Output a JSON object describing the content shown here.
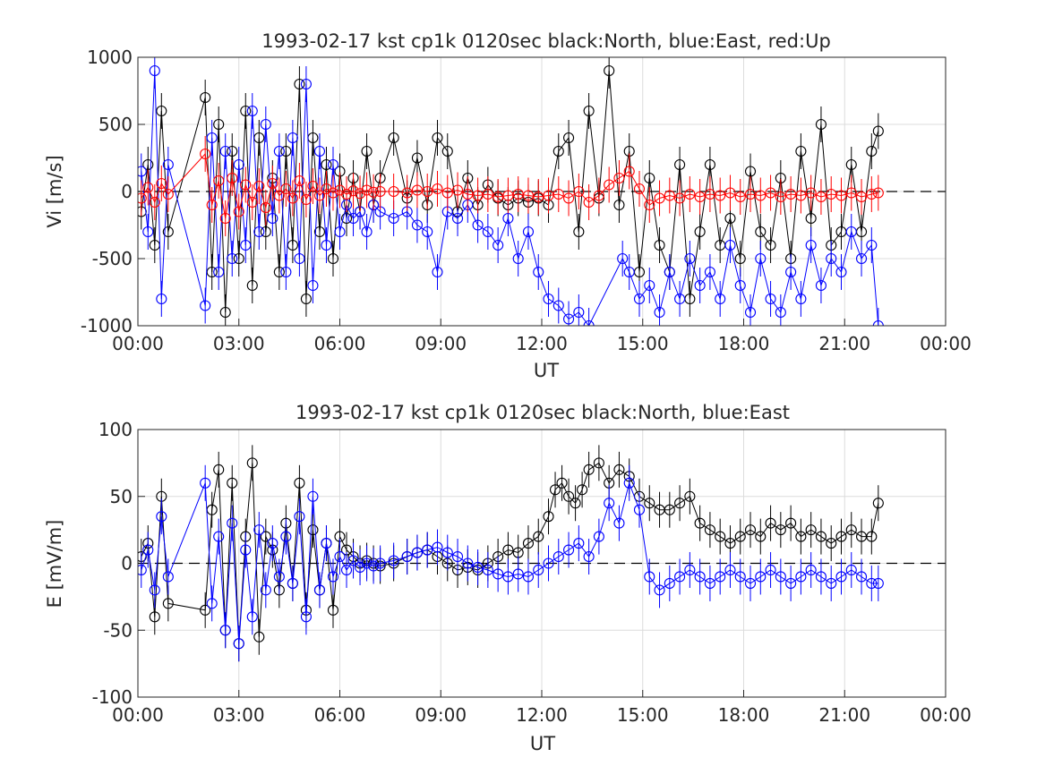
{
  "chart_data": [
    {
      "type": "scatter",
      "title": "1993-02-17 kst cp1k 0120sec black:North, blue:East, red:Up",
      "xlabel": "UT",
      "ylabel": "Vi [m/s]",
      "xlim": [
        0,
        24
      ],
      "ylim": [
        -1000,
        1000
      ],
      "xticks": [
        "00:00",
        "03:00",
        "06:00",
        "09:00",
        "12:00",
        "15:00",
        "18:00",
        "21:00",
        "00:00"
      ],
      "yticks": [
        "1000",
        "500",
        "0",
        "-500",
        "-1000"
      ],
      "grid": true,
      "zero_line": true,
      "x_units": "hours UT",
      "series": [
        {
          "color": "#000000",
          "x": [
            0.1,
            0.3,
            0.5,
            0.7,
            0.9,
            2.0,
            2.2,
            2.4,
            2.6,
            2.8,
            3.0,
            3.2,
            3.4,
            3.6,
            3.8,
            4.0,
            4.2,
            4.4,
            4.6,
            4.8,
            5.0,
            5.2,
            5.4,
            5.6,
            5.8,
            6.0,
            6.2,
            6.4,
            6.6,
            6.8,
            7.0,
            7.2,
            7.6,
            8.0,
            8.3,
            8.6,
            8.9,
            9.2,
            9.5,
            9.8,
            10.1,
            10.4,
            10.7,
            11.0,
            11.3,
            11.6,
            11.9,
            12.2,
            12.5,
            12.8,
            13.1,
            13.4,
            13.7,
            14.0,
            14.3,
            14.6,
            14.9,
            15.2,
            15.5,
            15.8,
            16.1,
            16.4,
            16.7,
            17.0,
            17.3,
            17.6,
            17.9,
            18.2,
            18.5,
            18.8,
            19.1,
            19.4,
            19.7,
            20.0,
            20.3,
            20.6,
            20.9,
            21.2,
            21.5,
            21.8,
            22.0
          ],
          "values": [
            -150,
            200,
            -400,
            600,
            -300,
            700,
            -600,
            500,
            -900,
            300,
            -500,
            600,
            -700,
            400,
            -300,
            100,
            -600,
            300,
            -400,
            800,
            -800,
            400,
            -300,
            200,
            -500,
            150,
            -200,
            100,
            -150,
            300,
            -100,
            100,
            400,
            -50,
            250,
            -100,
            400,
            300,
            -150,
            100,
            -100,
            50,
            -50,
            -100,
            -50,
            -80,
            -50,
            -100,
            300,
            400,
            -300,
            600,
            -50,
            900,
            -100,
            300,
            -600,
            100,
            -400,
            -600,
            200,
            -800,
            -300,
            200,
            -400,
            -200,
            -500,
            150,
            -300,
            -400,
            100,
            -500,
            300,
            -200,
            500,
            -400,
            -300,
            200,
            -300,
            300,
            450
          ]
        },
        {
          "color": "#0000ff",
          "x": [
            0.1,
            0.3,
            0.5,
            0.7,
            0.9,
            2.0,
            2.2,
            2.4,
            2.6,
            2.8,
            3.0,
            3.2,
            3.4,
            3.6,
            3.8,
            4.0,
            4.2,
            4.4,
            4.6,
            4.8,
            5.0,
            5.2,
            5.4,
            5.6,
            5.8,
            6.0,
            6.2,
            6.4,
            6.6,
            6.8,
            7.0,
            7.2,
            7.6,
            8.0,
            8.3,
            8.6,
            8.9,
            9.2,
            9.5,
            9.8,
            10.1,
            10.4,
            10.7,
            11.0,
            11.3,
            11.6,
            11.9,
            12.2,
            12.5,
            12.8,
            13.1,
            13.4,
            14.4,
            14.6,
            14.9,
            15.2,
            15.5,
            15.8,
            16.1,
            16.4,
            16.7,
            17.0,
            17.3,
            17.6,
            17.9,
            18.2,
            18.5,
            18.8,
            19.1,
            19.4,
            19.7,
            20.0,
            20.3,
            20.6,
            20.9,
            21.2,
            21.5,
            21.8,
            22.0
          ],
          "values": [
            150,
            -300,
            900,
            -800,
            200,
            -850,
            400,
            -600,
            300,
            -500,
            200,
            -400,
            600,
            -300,
            500,
            -200,
            300,
            -600,
            400,
            -500,
            800,
            -700,
            300,
            -400,
            200,
            -300,
            -100,
            -200,
            -150,
            -300,
            -100,
            -150,
            -200,
            -150,
            -250,
            -300,
            -600,
            -150,
            -200,
            -100,
            -250,
            -300,
            -400,
            -200,
            -500,
            -300,
            -600,
            -800,
            -850,
            -950,
            -900,
            -1000,
            -500,
            -600,
            -800,
            -700,
            -900,
            -600,
            -800,
            -500,
            -700,
            -600,
            -800,
            -400,
            -700,
            -900,
            -500,
            -800,
            -900,
            -600,
            -800,
            -400,
            -700,
            -500,
            -600,
            -300,
            -500,
            -400,
            -1000
          ]
        },
        {
          "color": "#ff0000",
          "x": [
            0.1,
            0.3,
            0.5,
            0.7,
            0.9,
            2.0,
            2.2,
            2.4,
            2.6,
            2.8,
            3.0,
            3.2,
            3.4,
            3.6,
            3.8,
            4.0,
            4.2,
            4.4,
            4.6,
            4.8,
            5.0,
            5.2,
            5.4,
            5.6,
            5.8,
            6.0,
            6.2,
            6.4,
            6.6,
            6.8,
            7.0,
            7.2,
            7.6,
            8.0,
            8.3,
            8.6,
            8.9,
            9.2,
            9.5,
            9.8,
            10.1,
            10.4,
            10.7,
            11.0,
            11.3,
            11.6,
            11.9,
            12.2,
            12.5,
            12.8,
            13.1,
            13.4,
            13.7,
            14.0,
            14.3,
            14.6,
            14.9,
            15.2,
            15.5,
            15.8,
            16.1,
            16.4,
            16.7,
            17.0,
            17.3,
            17.6,
            17.9,
            18.2,
            18.5,
            18.8,
            19.1,
            19.4,
            19.7,
            20.0,
            20.3,
            20.6,
            20.9,
            21.2,
            21.5,
            21.8,
            22.0
          ],
          "values": [
            -50,
            30,
            -80,
            60,
            -20,
            280,
            -100,
            80,
            -200,
            100,
            -150,
            50,
            -80,
            40,
            -120,
            60,
            -30,
            20,
            -50,
            80,
            -60,
            40,
            -30,
            20,
            -10,
            10,
            -20,
            5,
            -15,
            10,
            -5,
            0,
            0,
            -10,
            10,
            0,
            20,
            -10,
            10,
            -20,
            -30,
            -20,
            -40,
            -30,
            -20,
            -30,
            -40,
            -30,
            -20,
            -50,
            0,
            -80,
            -30,
            50,
            100,
            150,
            20,
            -100,
            -50,
            -30,
            -50,
            -20,
            -40,
            -20,
            -30,
            -10,
            -40,
            -20,
            -30,
            -10,
            -40,
            -20,
            -30,
            -10,
            -40,
            -20,
            -30,
            -10,
            -40,
            -20,
            -10
          ]
        }
      ]
    },
    {
      "type": "scatter",
      "title": "1993-02-17 kst cp1k 0120sec black:North, blue:East",
      "xlabel": "UT",
      "ylabel": "E [mV/m]",
      "xlim": [
        0,
        24
      ],
      "ylim": [
        -100,
        100
      ],
      "xticks": [
        "00:00",
        "03:00",
        "06:00",
        "09:00",
        "12:00",
        "15:00",
        "18:00",
        "21:00",
        "00:00"
      ],
      "yticks": [
        "100",
        "50",
        "0",
        "-50",
        "-100"
      ],
      "grid": true,
      "zero_line": true,
      "x_units": "hours UT",
      "series": [
        {
          "color": "#000000",
          "x": [
            0.1,
            0.3,
            0.5,
            0.7,
            0.9,
            2.0,
            2.2,
            2.4,
            2.6,
            2.8,
            3.0,
            3.2,
            3.4,
            3.6,
            3.8,
            4.0,
            4.2,
            4.4,
            4.6,
            4.8,
            5.0,
            5.2,
            5.4,
            5.6,
            5.8,
            6.0,
            6.2,
            6.4,
            6.6,
            6.8,
            7.0,
            7.2,
            7.6,
            8.0,
            8.3,
            8.6,
            8.9,
            9.2,
            9.5,
            9.8,
            10.1,
            10.4,
            10.7,
            11.0,
            11.3,
            11.6,
            11.9,
            12.2,
            12.4,
            12.6,
            12.8,
            13.0,
            13.2,
            13.4,
            13.7,
            14.0,
            14.3,
            14.6,
            14.9,
            15.2,
            15.5,
            15.8,
            16.1,
            16.4,
            16.7,
            17.0,
            17.3,
            17.6,
            17.9,
            18.2,
            18.5,
            18.8,
            19.1,
            19.4,
            19.7,
            20.0,
            20.3,
            20.6,
            20.9,
            21.2,
            21.5,
            21.8,
            22.0
          ],
          "values": [
            5,
            15,
            -40,
            50,
            -30,
            -35,
            40,
            70,
            -50,
            60,
            -60,
            20,
            75,
            -55,
            20,
            10,
            -20,
            30,
            -15,
            60,
            -35,
            25,
            -20,
            15,
            -35,
            20,
            10,
            5,
            0,
            2,
            0,
            -2,
            0,
            5,
            8,
            10,
            5,
            0,
            -5,
            -3,
            -5,
            0,
            5,
            10,
            8,
            15,
            20,
            35,
            55,
            60,
            50,
            45,
            55,
            70,
            75,
            60,
            70,
            65,
            50,
            45,
            40,
            40,
            45,
            50,
            30,
            25,
            20,
            15,
            20,
            25,
            20,
            30,
            25,
            30,
            20,
            25,
            20,
            15,
            20,
            25,
            20,
            20,
            45
          ]
        },
        {
          "color": "#0000ff",
          "x": [
            0.1,
            0.3,
            0.5,
            0.7,
            0.9,
            2.0,
            2.2,
            2.4,
            2.6,
            2.8,
            3.0,
            3.2,
            3.4,
            3.6,
            3.8,
            4.0,
            4.2,
            4.4,
            4.6,
            4.8,
            5.0,
            5.2,
            5.4,
            5.6,
            5.8,
            6.0,
            6.2,
            6.4,
            6.6,
            6.8,
            7.0,
            7.2,
            7.6,
            8.0,
            8.3,
            8.6,
            8.9,
            9.2,
            9.5,
            9.8,
            10.1,
            10.4,
            10.7,
            11.0,
            11.3,
            11.6,
            11.9,
            12.2,
            12.5,
            12.8,
            13.1,
            13.4,
            13.7,
            14.0,
            14.3,
            14.6,
            14.9,
            15.2,
            15.5,
            15.8,
            16.1,
            16.4,
            16.7,
            17.0,
            17.3,
            17.6,
            17.9,
            18.2,
            18.5,
            18.8,
            19.1,
            19.4,
            19.7,
            20.0,
            20.3,
            20.6,
            20.9,
            21.2,
            21.5,
            21.8,
            22.0
          ],
          "values": [
            -5,
            10,
            -20,
            35,
            -10,
            60,
            -30,
            20,
            -50,
            30,
            -60,
            10,
            -40,
            25,
            -20,
            15,
            -10,
            20,
            -15,
            35,
            -40,
            50,
            -20,
            15,
            -10,
            5,
            -5,
            2,
            -3,
            0,
            -2,
            0,
            2,
            5,
            8,
            10,
            12,
            8,
            5,
            0,
            -3,
            -5,
            -8,
            -10,
            -8,
            -10,
            -5,
            0,
            5,
            10,
            15,
            5,
            20,
            45,
            30,
            60,
            40,
            -10,
            -20,
            -15,
            -10,
            -5,
            -10,
            -15,
            -10,
            -5,
            -10,
            -15,
            -10,
            -5,
            -10,
            -15,
            -10,
            -5,
            -10,
            -15,
            -10,
            -5,
            -10,
            -15,
            -15
          ]
        }
      ]
    }
  ]
}
